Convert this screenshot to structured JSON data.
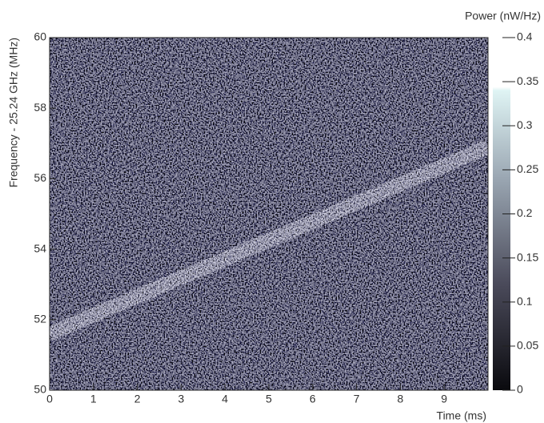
{
  "chart_data": {
    "type": "spectrogram",
    "colorbar_title": "Power (nW/Hz)",
    "x_label": "Time (ms)",
    "y_label": "Frequency - 25.24 GHz (MHz)",
    "xlim": [
      0,
      10
    ],
    "xticks": [
      0,
      1,
      2,
      3,
      4,
      5,
      6,
      7,
      8,
      9
    ],
    "ylim": [
      50,
      60
    ],
    "yticks": [
      50,
      52,
      54,
      56,
      58,
      60
    ],
    "zlim": [
      0,
      0.4
    ],
    "zticks": [
      0,
      0.05,
      0.1,
      0.15,
      0.2,
      0.25,
      0.3,
      0.35,
      0.4
    ],
    "series": [
      {
        "x": [
          0,
          10
        ],
        "values": [
          51.6,
          56.9
        ],
        "color": "#a8a8c0"
      }
    ]
  }
}
